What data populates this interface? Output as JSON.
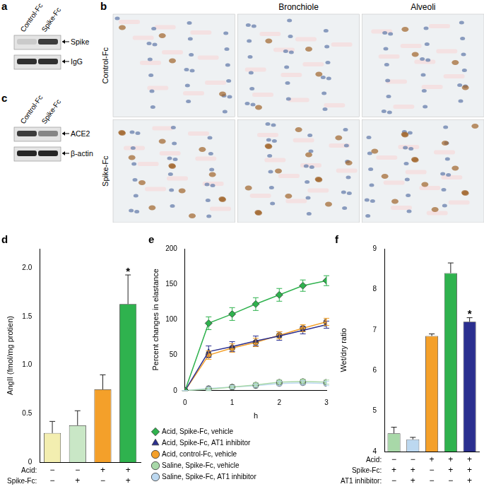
{
  "panels": [
    {
      "panel_label": "a",
      "type": "blot",
      "lanes": [
        "Control-Fc",
        "Spike-Fc"
      ],
      "bands": [
        "Spike",
        "IgG"
      ]
    },
    {
      "panel_label": "b",
      "type": "micrographs",
      "columns": [
        null,
        "Bronchiole",
        "Alveoli"
      ],
      "rows": [
        "Control-Fc",
        "Spike-Fc"
      ]
    },
    {
      "panel_label": "c",
      "type": "blot",
      "lanes": [
        "Control-Fc",
        "Spike-Fc"
      ],
      "bands": [
        "ACE2",
        "β-actin"
      ]
    }
  ],
  "chart_data": [
    {
      "panel_label": "d",
      "type": "bar",
      "y_label": "AngII (fmol/mg protien)",
      "categories": [
        null,
        null,
        null,
        null
      ],
      "values": [
        0.3,
        0.38,
        0.75,
        1.63
      ],
      "errors": [
        0.12,
        0.15,
        0.15,
        0.3
      ],
      "colors": [
        "#f3eeb0",
        "#c9e7c6",
        "#f4a02a",
        "#2fb24e"
      ],
      "ylim": [
        0,
        2.2
      ],
      "yticks": [
        0,
        0.5,
        {
          "value": 1,
          "label": "1.0"
        },
        1.5,
        {
          "value": 2,
          "label": "2.0"
        }
      ],
      "conditions": [
        {
          "label": "Acid:",
          "marks": [
            "−",
            "−",
            "+",
            "+"
          ]
        },
        {
          "label": "Spike-Fc:",
          "marks": [
            "−",
            "+",
            "−",
            "+"
          ]
        }
      ],
      "annotations": [
        null,
        null,
        null,
        "*"
      ],
      "grid": false
    },
    {
      "panel_label": "e",
      "type": "line",
      "y_label": "Percent changes in elastance",
      "x_label": "h",
      "x": [
        0,
        0.5,
        1,
        1.5,
        2,
        2.5,
        3
      ],
      "xlim": [
        0,
        3
      ],
      "xticks": [
        0,
        1,
        2,
        3
      ],
      "ylim": [
        0,
        200
      ],
      "yticks": [
        0,
        50,
        100,
        150,
        200
      ],
      "grid": false,
      "legend": "bottom",
      "series": [
        {
          "name": "Acid, Spike-Fc, vehicle",
          "color": "#2fb24e",
          "marker": "diamond",
          "values": [
            0,
            95,
            108,
            122,
            135,
            148,
            155
          ],
          "errors": [
            0,
            9,
            9,
            9,
            9,
            8,
            7
          ]
        },
        {
          "name": "Acid, Spike-Fc, AT1 inhibitor",
          "color": "#2b2f8f",
          "marker": "triangle",
          "values": [
            0,
            55,
            62,
            70,
            77,
            85,
            93
          ],
          "errors": [
            0,
            8,
            7,
            7,
            6,
            5,
            5
          ]
        },
        {
          "name": "Acid, control-Fc, vehicle",
          "color": "#f4a02a",
          "marker": "circle",
          "values": [
            0,
            50,
            60,
            68,
            78,
            88,
            97
          ],
          "errors": [
            0,
            6,
            6,
            6,
            5,
            5,
            5
          ]
        },
        {
          "name": "Saline, Spike-Fc, vehicle",
          "color": "#a8d8a8",
          "marker": "circle",
          "values": [
            0,
            2,
            5,
            8,
            12,
            13,
            12
          ],
          "errors": [
            0,
            2,
            2,
            3,
            3,
            3,
            3
          ]
        },
        {
          "name": "Saline, Spike-Fc, AT1 inhibitor",
          "color": "#bcd8f0",
          "marker": "circle",
          "values": [
            0,
            3,
            5,
            7,
            10,
            11,
            10
          ],
          "errors": [
            0,
            2,
            2,
            2,
            3,
            3,
            3
          ]
        }
      ]
    },
    {
      "panel_label": "f",
      "type": "bar",
      "y_label": "Wet/dry ratio",
      "categories": [
        null,
        null,
        null,
        null,
        null
      ],
      "values": [
        4.45,
        4.3,
        6.85,
        8.4,
        7.2
      ],
      "errors": [
        0.15,
        0.05,
        0.05,
        0.25,
        0.1
      ],
      "colors": [
        "#a8d8a8",
        "#bcd8f0",
        "#f4a02a",
        "#2fb24e",
        "#2b2f8f"
      ],
      "ylim": [
        4,
        9
      ],
      "yticks": [
        4,
        5,
        6,
        7,
        8,
        9
      ],
      "conditions": [
        {
          "label": "Acid:",
          "marks": [
            "−",
            "−",
            "+",
            "+",
            "+"
          ]
        },
        {
          "label": "Spike-Fc:",
          "marks": [
            "+",
            "+",
            "−",
            "+",
            "+"
          ]
        },
        {
          "label": "AT1 inhibitor:",
          "marks": [
            "−",
            "+",
            "−",
            "−",
            "+"
          ]
        }
      ],
      "annotations": [
        null,
        null,
        null,
        null,
        "*"
      ],
      "grid": false
    }
  ]
}
